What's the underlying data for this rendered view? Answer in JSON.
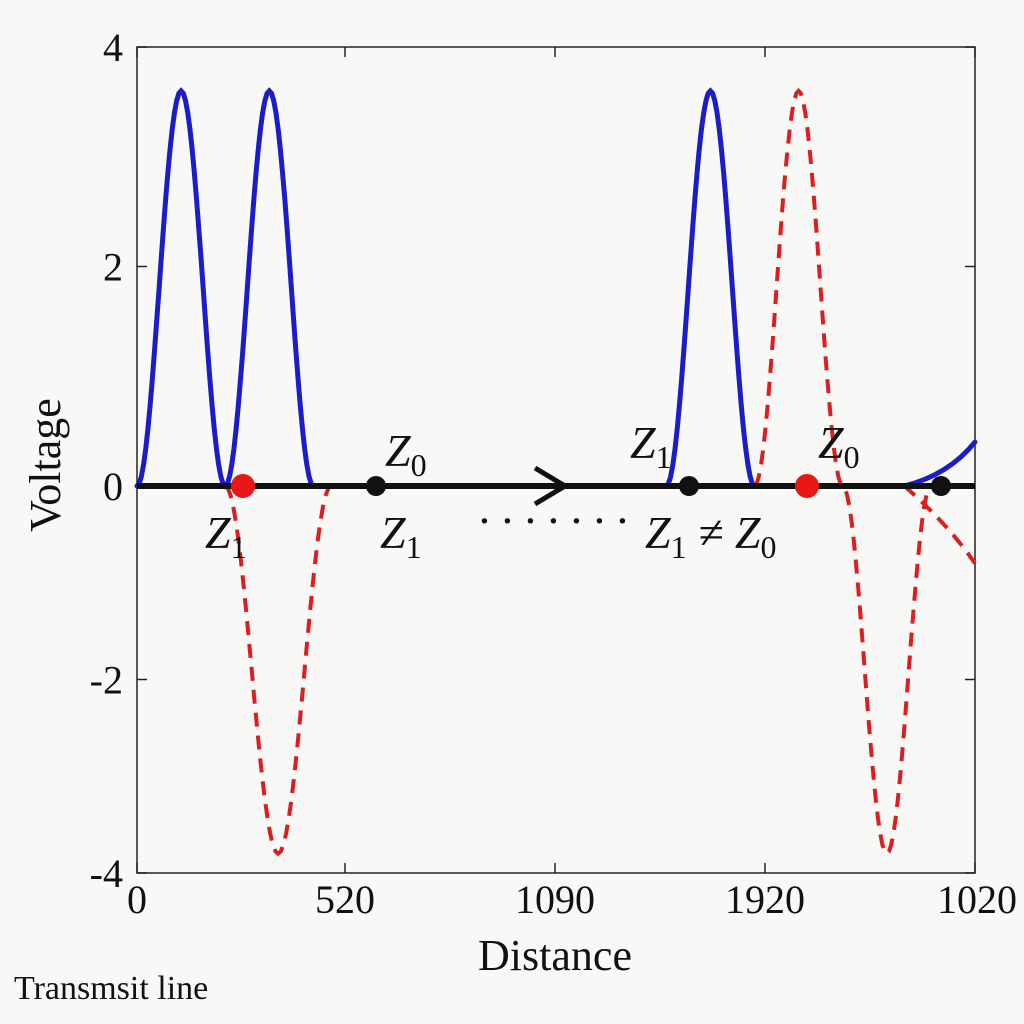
{
  "chart_data": {
    "type": "line",
    "title": "",
    "xlabel": "Distance",
    "ylabel": "Voltage",
    "x_tick_labels": [
      "0",
      "520",
      "1090",
      "1920",
      "1020"
    ],
    "y_tick_labels": [
      "4",
      "2",
      "0",
      "-2",
      "-4"
    ],
    "ylim": [
      -4,
      4
    ],
    "grid": false,
    "series": [
      {
        "style": "solid",
        "color": "#1c1cc8",
        "x": [
          0,
          0.5,
          1,
          1.5,
          2,
          2.5,
          3,
          3.5,
          4,
          6.5,
          7,
          7.5,
          8,
          8.5,
          9
        ],
        "y": [
          0,
          3.6,
          0,
          3.6,
          0,
          null,
          null,
          null,
          null,
          null,
          null,
          3.6,
          0,
          null,
          0.4
        ]
      },
      {
        "style": "dashed",
        "color": "#dc1e1e",
        "x": [
          1,
          1.5,
          2,
          8,
          8.5,
          9,
          9.5
        ],
        "y": [
          0,
          -3.8,
          0,
          0,
          3.6,
          -3.8,
          0
        ]
      }
    ],
    "markers": [
      {
        "x": 1,
        "y": 0,
        "color": "#e81818"
      },
      {
        "x": 2,
        "y": 0,
        "color": "#111111"
      },
      {
        "x": 5.8,
        "y": 0,
        "color": "#111111"
      },
      {
        "x": 7,
        "y": 0,
        "color": "#e81818"
      },
      {
        "x": 8,
        "y": 0,
        "color": "#111111"
      }
    ],
    "annotations": [
      {
        "label": "Z",
        "sub": "0",
        "suffix": ""
      },
      {
        "label": "Z",
        "sub": "1",
        "suffix": ""
      },
      {
        "label": "Z",
        "sub": "1",
        "suffix": ""
      },
      {
        "label": "Z",
        "sub": "1",
        "suffix": ""
      },
      {
        "label": "Z",
        "sub": "0",
        "suffix": ""
      },
      {
        "label": "Z",
        "sub": "1",
        "suffix": " ≠ Z",
        "sub2": "0"
      }
    ],
    "dots": "· · · · · · ·",
    "caption": "Transmsit line"
  }
}
